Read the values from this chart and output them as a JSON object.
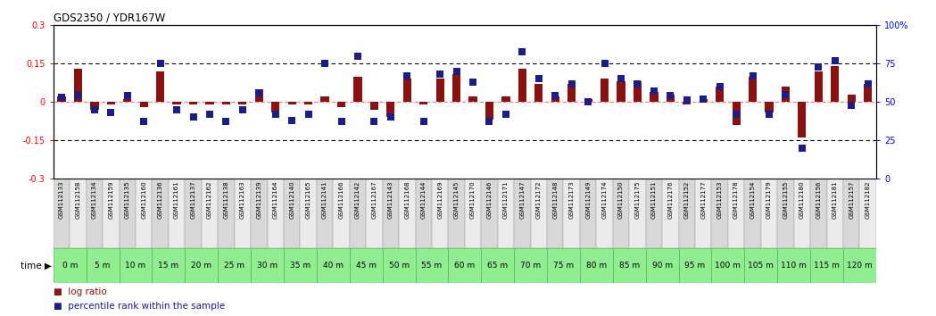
{
  "title": "GDS2350 / YDR167W",
  "samples": [
    "GSM112133",
    "GSM112158",
    "GSM112134",
    "GSM112159",
    "GSM112135",
    "GSM112160",
    "GSM112136",
    "GSM112161",
    "GSM112137",
    "GSM112162",
    "GSM112138",
    "GSM112163",
    "GSM112139",
    "GSM112164",
    "GSM112140",
    "GSM112165",
    "GSM112141",
    "GSM112166",
    "GSM112142",
    "GSM112167",
    "GSM112143",
    "GSM112168",
    "GSM112144",
    "GSM112169",
    "GSM112145",
    "GSM112170",
    "GSM112146",
    "GSM112171",
    "GSM112147",
    "GSM112172",
    "GSM112148",
    "GSM112173",
    "GSM112149",
    "GSM112174",
    "GSM112150",
    "GSM112175",
    "GSM112151",
    "GSM112176",
    "GSM112152",
    "GSM112177",
    "GSM112153",
    "GSM112178",
    "GSM112154",
    "GSM112179",
    "GSM112155",
    "GSM112180",
    "GSM112156",
    "GSM112181",
    "GSM112157",
    "GSM112182"
  ],
  "time_labels": [
    "0 m",
    "5 m",
    "10 m",
    "15 m",
    "20 m",
    "25 m",
    "30 m",
    "35 m",
    "40 m",
    "45 m",
    "50 m",
    "55 m",
    "60 m",
    "65 m",
    "70 m",
    "75 m",
    "80 m",
    "85 m",
    "90 m",
    "95 m",
    "100 m",
    "105 m",
    "110 m",
    "115 m",
    "120 m"
  ],
  "log_ratio": [
    0.02,
    0.13,
    -0.03,
    -0.01,
    0.01,
    -0.02,
    0.12,
    -0.01,
    -0.01,
    -0.01,
    -0.01,
    -0.01,
    0.05,
    -0.04,
    -0.01,
    -0.01,
    0.02,
    -0.02,
    0.1,
    -0.03,
    -0.06,
    0.09,
    -0.01,
    0.09,
    0.11,
    0.02,
    -0.07,
    0.02,
    0.13,
    0.07,
    0.02,
    0.07,
    0.01,
    0.09,
    0.08,
    0.08,
    0.04,
    0.03,
    -0.01,
    0.01,
    0.06,
    -0.09,
    0.1,
    -0.04,
    0.06,
    -0.14,
    0.12,
    0.14,
    0.03,
    0.07
  ],
  "percentile": [
    53,
    54,
    45,
    43,
    54,
    37,
    75,
    45,
    40,
    42,
    37,
    45,
    56,
    42,
    38,
    42,
    75,
    37,
    80,
    37,
    40,
    67,
    37,
    68,
    70,
    63,
    37,
    42,
    83,
    65,
    54,
    62,
    50,
    75,
    65,
    62,
    57,
    54,
    51,
    52,
    60,
    42,
    67,
    42,
    55,
    20,
    73,
    77,
    48,
    62
  ],
  "ylim_left": [
    -0.3,
    0.3
  ],
  "ylim_right": [
    0,
    100
  ],
  "bar_color": "#8B1010",
  "scatter_color": "#1C1C8C",
  "zero_line_color": "#FF8080",
  "sample_bg_even": "#D8D8D8",
  "sample_bg_odd": "#EBEBEB",
  "time_bg_color": "#90EE90",
  "time_edge_color": "#60AA60",
  "separator_color": "#222222",
  "dotted_line_color": "#000000"
}
